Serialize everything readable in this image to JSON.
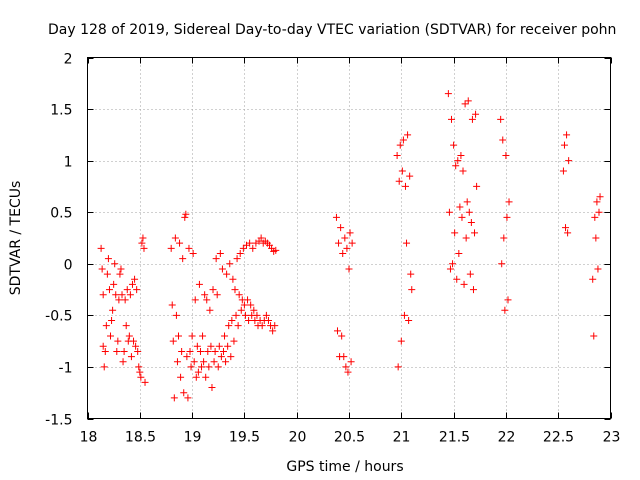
{
  "chart_data": {
    "type": "scatter",
    "title": "Day 128 of 2019, Sidereal Day-to-day VTEC variation (SDTVAR) for receiver pohn",
    "xlabel": "GPS time / hours",
    "ylabel": "SDTVAR / TECUs",
    "xlim": [
      18,
      23
    ],
    "ylim": [
      -1.5,
      2
    ],
    "xticks": [
      18,
      18.5,
      19,
      19.5,
      20,
      20.5,
      21,
      21.5,
      22,
      22.5,
      23
    ],
    "xtick_labels": [
      "18",
      "18.5",
      "19",
      "19.5",
      "20",
      "20.5",
      "21",
      "21.5",
      "22",
      "22.5",
      "23"
    ],
    "yticks": [
      -1.5,
      -1,
      -0.5,
      0,
      0.5,
      1,
      1.5,
      2
    ],
    "ytick_labels": [
      "-1.5",
      "-1",
      "-0.5",
      "0",
      "0.5",
      "1",
      "1.5",
      "2"
    ],
    "grid": true,
    "marker": "+",
    "color": "#ff0000",
    "series": [
      {
        "name": "SDTVAR",
        "points": [
          [
            18.13,
            0.15
          ],
          [
            18.14,
            -0.05
          ],
          [
            18.15,
            -0.3
          ],
          [
            18.15,
            -0.8
          ],
          [
            18.16,
            -1.0
          ],
          [
            18.17,
            -0.85
          ],
          [
            18.18,
            -0.6
          ],
          [
            18.19,
            -0.1
          ],
          [
            18.2,
            0.05
          ],
          [
            18.21,
            -0.25
          ],
          [
            18.22,
            -0.7
          ],
          [
            18.23,
            -0.55
          ],
          [
            18.24,
            -0.45
          ],
          [
            18.25,
            -0.2
          ],
          [
            18.26,
            0.0
          ],
          [
            18.27,
            -0.3
          ],
          [
            18.28,
            -0.85
          ],
          [
            18.29,
            -0.75
          ],
          [
            18.3,
            -0.35
          ],
          [
            18.31,
            -0.1
          ],
          [
            18.32,
            -0.05
          ],
          [
            18.33,
            -0.3
          ],
          [
            18.34,
            -0.95
          ],
          [
            18.35,
            -0.85
          ],
          [
            18.36,
            -0.35
          ],
          [
            18.37,
            -0.6
          ],
          [
            18.38,
            -0.25
          ],
          [
            18.39,
            -0.75
          ],
          [
            18.4,
            -0.7
          ],
          [
            18.41,
            -0.3
          ],
          [
            18.42,
            -0.9
          ],
          [
            18.43,
            -0.2
          ],
          [
            18.44,
            -0.75
          ],
          [
            18.45,
            -0.15
          ],
          [
            18.46,
            -0.8
          ],
          [
            18.47,
            -0.25
          ],
          [
            18.48,
            -0.85
          ],
          [
            18.49,
            -1.0
          ],
          [
            18.5,
            -1.05
          ],
          [
            18.51,
            -1.1
          ],
          [
            18.52,
            0.2
          ],
          [
            18.53,
            0.25
          ],
          [
            18.54,
            0.15
          ],
          [
            18.55,
            -1.15
          ],
          [
            18.8,
            0.15
          ],
          [
            18.81,
            -0.4
          ],
          [
            18.82,
            -0.75
          ],
          [
            18.83,
            -1.3
          ],
          [
            18.84,
            0.25
          ],
          [
            18.85,
            -0.5
          ],
          [
            18.86,
            -0.95
          ],
          [
            18.87,
            -0.7
          ],
          [
            18.88,
            0.2
          ],
          [
            18.89,
            -1.1
          ],
          [
            18.9,
            -0.85
          ],
          [
            18.91,
            0.05
          ],
          [
            18.92,
            -1.25
          ],
          [
            18.93,
            0.45
          ],
          [
            18.94,
            0.48
          ],
          [
            18.95,
            -0.9
          ],
          [
            18.96,
            -1.3
          ],
          [
            18.97,
            0.15
          ],
          [
            18.98,
            -0.85
          ],
          [
            18.99,
            -1.0
          ],
          [
            19.0,
            -0.7
          ],
          [
            19.01,
            0.1
          ],
          [
            19.02,
            -0.95
          ],
          [
            19.03,
            -0.35
          ],
          [
            19.04,
            -1.1
          ],
          [
            19.05,
            -0.8
          ],
          [
            19.06,
            -1.05
          ],
          [
            19.07,
            -0.2
          ],
          [
            19.08,
            -0.85
          ],
          [
            19.09,
            -1.0
          ],
          [
            19.1,
            -0.7
          ],
          [
            19.11,
            -0.95
          ],
          [
            19.12,
            -0.3
          ],
          [
            19.13,
            -1.1
          ],
          [
            19.14,
            -0.35
          ],
          [
            19.15,
            -0.85
          ],
          [
            19.16,
            -1.0
          ],
          [
            19.17,
            -0.45
          ],
          [
            19.18,
            -0.8
          ],
          [
            19.19,
            -1.2
          ],
          [
            19.2,
            -0.25
          ],
          [
            19.21,
            -0.95
          ],
          [
            19.22,
            -0.85
          ],
          [
            19.23,
            0.05
          ],
          [
            19.24,
            -0.3
          ],
          [
            19.25,
            -1.0
          ],
          [
            19.26,
            -0.8
          ],
          [
            19.27,
            0.1
          ],
          [
            19.28,
            -0.9
          ],
          [
            19.29,
            -0.05
          ],
          [
            19.3,
            -0.85
          ],
          [
            19.31,
            -0.7
          ],
          [
            19.32,
            -0.95
          ],
          [
            19.33,
            -0.1
          ],
          [
            19.34,
            -0.8
          ],
          [
            19.35,
            -0.6
          ],
          [
            19.36,
            0.0
          ],
          [
            19.37,
            -0.9
          ],
          [
            19.38,
            -0.55
          ],
          [
            19.39,
            -0.15
          ],
          [
            19.4,
            -0.75
          ],
          [
            19.41,
            -0.25
          ],
          [
            19.42,
            -0.5
          ],
          [
            19.43,
            0.05
          ],
          [
            19.44,
            -0.6
          ],
          [
            19.45,
            -0.3
          ],
          [
            19.46,
            0.1
          ],
          [
            19.47,
            -0.45
          ],
          [
            19.48,
            -0.35
          ],
          [
            19.49,
            0.15
          ],
          [
            19.5,
            -0.4
          ],
          [
            19.51,
            -0.5
          ],
          [
            19.52,
            0.18
          ],
          [
            19.53,
            -0.35
          ],
          [
            19.54,
            -0.55
          ],
          [
            19.55,
            0.2
          ],
          [
            19.56,
            -0.4
          ],
          [
            19.57,
            -0.5
          ],
          [
            19.58,
            0.15
          ],
          [
            19.59,
            -0.45
          ],
          [
            19.6,
            -0.55
          ],
          [
            19.61,
            0.2
          ],
          [
            19.62,
            -0.5
          ],
          [
            19.63,
            -0.6
          ],
          [
            19.64,
            0.22
          ],
          [
            19.65,
            -0.55
          ],
          [
            19.66,
            0.25
          ],
          [
            19.67,
            -0.6
          ],
          [
            19.68,
            0.2
          ],
          [
            19.69,
            -0.55
          ],
          [
            19.7,
            0.22
          ],
          [
            19.71,
            -0.5
          ],
          [
            19.72,
            0.2
          ],
          [
            19.73,
            -0.55
          ],
          [
            19.74,
            0.18
          ],
          [
            19.75,
            -0.6
          ],
          [
            19.76,
            0.15
          ],
          [
            19.77,
            -0.65
          ],
          [
            19.78,
            0.12
          ],
          [
            19.79,
            -0.6
          ],
          [
            19.8,
            0.13
          ],
          [
            20.38,
            0.45
          ],
          [
            20.39,
            -0.65
          ],
          [
            20.4,
            0.2
          ],
          [
            20.41,
            -0.9
          ],
          [
            20.42,
            0.35
          ],
          [
            20.43,
            -0.7
          ],
          [
            20.44,
            0.1
          ],
          [
            20.45,
            -0.9
          ],
          [
            20.46,
            0.25
          ],
          [
            20.47,
            -1.0
          ],
          [
            20.48,
            0.15
          ],
          [
            20.49,
            -1.05
          ],
          [
            20.5,
            -0.05
          ],
          [
            20.51,
            0.3
          ],
          [
            20.52,
            -0.95
          ],
          [
            20.53,
            0.2
          ],
          [
            20.96,
            1.05
          ],
          [
            20.97,
            -1.0
          ],
          [
            20.98,
            0.8
          ],
          [
            20.99,
            1.15
          ],
          [
            21.0,
            -0.75
          ],
          [
            21.01,
            0.9
          ],
          [
            21.02,
            1.2
          ],
          [
            21.03,
            -0.5
          ],
          [
            21.04,
            0.75
          ],
          [
            21.05,
            0.2
          ],
          [
            21.06,
            1.25
          ],
          [
            21.07,
            -0.55
          ],
          [
            21.08,
            0.85
          ],
          [
            21.09,
            -0.1
          ],
          [
            21.1,
            -0.25
          ],
          [
            21.45,
            1.65
          ],
          [
            21.46,
            0.5
          ],
          [
            21.47,
            -0.05
          ],
          [
            21.48,
            1.4
          ],
          [
            21.49,
            0.0
          ],
          [
            21.5,
            1.15
          ],
          [
            21.51,
            0.3
          ],
          [
            21.52,
            0.95
          ],
          [
            21.53,
            -0.15
          ],
          [
            21.54,
            1.0
          ],
          [
            21.55,
            0.1
          ],
          [
            21.56,
            0.55
          ],
          [
            21.57,
            1.05
          ],
          [
            21.58,
            0.45
          ],
          [
            21.59,
            0.9
          ],
          [
            21.6,
            -0.2
          ],
          [
            21.61,
            1.55
          ],
          [
            21.62,
            0.25
          ],
          [
            21.63,
            0.6
          ],
          [
            21.64,
            1.58
          ],
          [
            21.65,
            0.5
          ],
          [
            21.66,
            -0.1
          ],
          [
            21.67,
            0.4
          ],
          [
            21.68,
            1.4
          ],
          [
            21.69,
            -0.25
          ],
          [
            21.7,
            0.3
          ],
          [
            21.71,
            1.45
          ],
          [
            21.72,
            0.75
          ],
          [
            21.95,
            1.4
          ],
          [
            21.96,
            0.0
          ],
          [
            21.97,
            1.2
          ],
          [
            21.98,
            0.25
          ],
          [
            21.99,
            -0.45
          ],
          [
            22.0,
            1.05
          ],
          [
            22.01,
            0.45
          ],
          [
            22.02,
            -0.35
          ],
          [
            22.03,
            0.6
          ],
          [
            22.55,
            0.9
          ],
          [
            22.56,
            1.15
          ],
          [
            22.57,
            0.35
          ],
          [
            22.58,
            1.25
          ],
          [
            22.59,
            0.3
          ],
          [
            22.6,
            1.0
          ],
          [
            22.83,
            -0.15
          ],
          [
            22.84,
            -0.7
          ],
          [
            22.85,
            0.45
          ],
          [
            22.86,
            0.25
          ],
          [
            22.87,
            0.6
          ],
          [
            22.88,
            -0.05
          ],
          [
            22.89,
            0.5
          ],
          [
            22.9,
            0.65
          ]
        ]
      }
    ]
  }
}
